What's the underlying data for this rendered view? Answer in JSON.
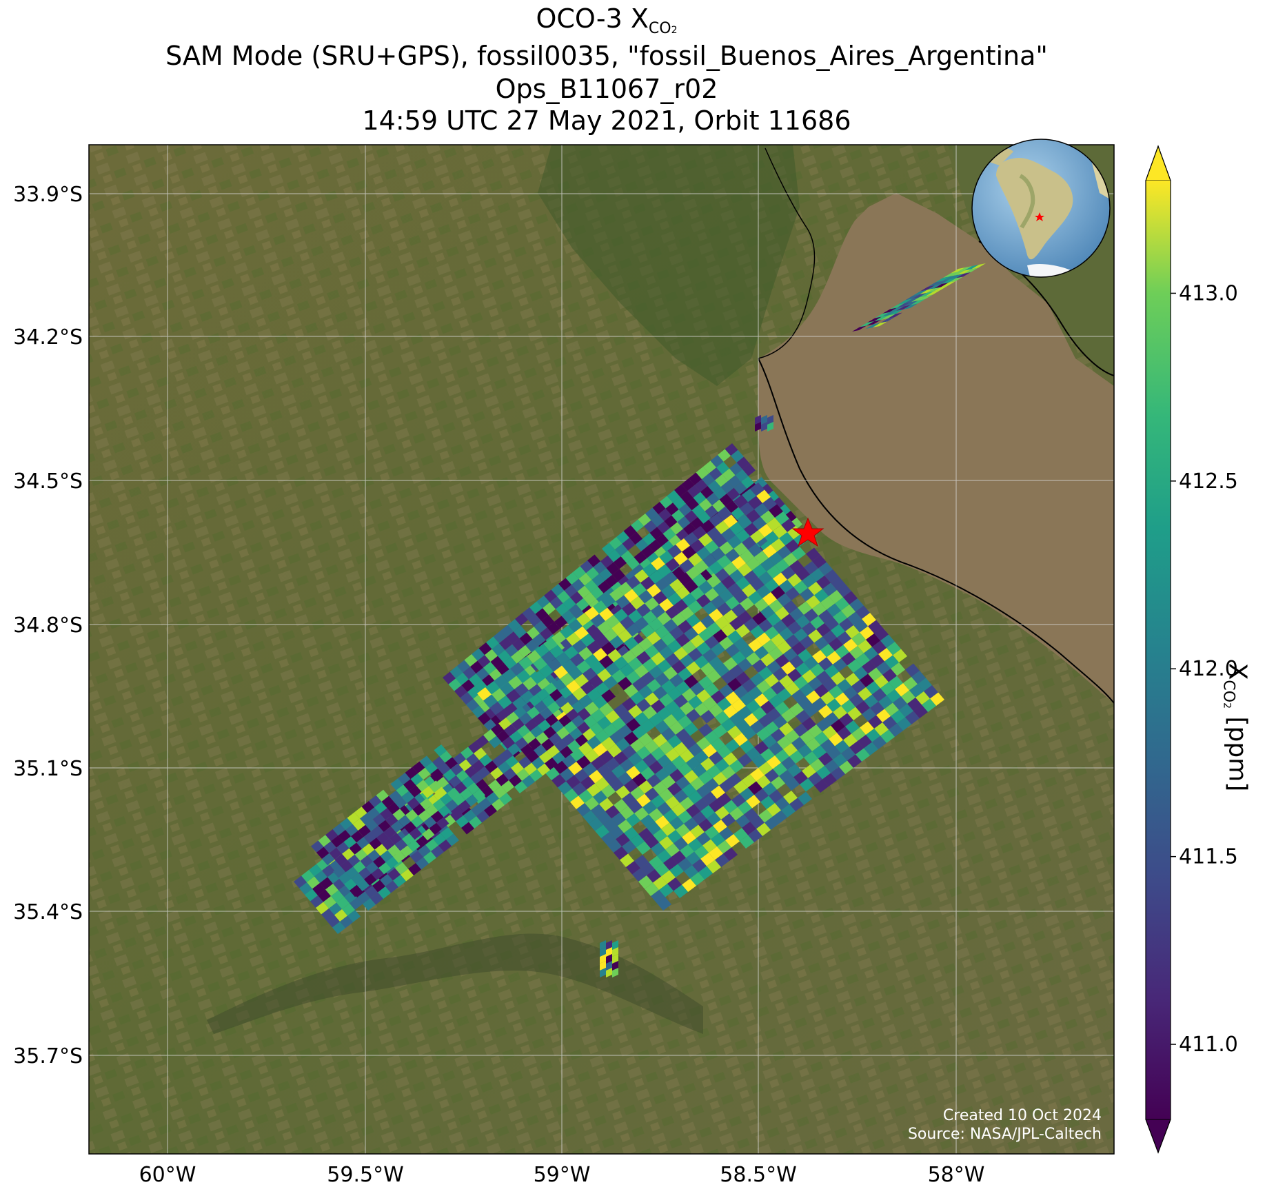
{
  "title": {
    "line1_prefix": "OCO-3 X",
    "line1_sub": "CO",
    "line1_subsub": "2",
    "line2": "SAM Mode (SRU+GPS), fossil0035, \"fossil_Buenos_Aires_Argentina\"",
    "line3": "Ops_B11067_r02",
    "line4": "14:59 UTC 27 May 2021, Orbit 11686"
  },
  "axes": {
    "lat_ticks": [
      "33.9°S",
      "34.2°S",
      "34.5°S",
      "34.8°S",
      "35.1°S",
      "35.4°S",
      "35.7°S"
    ],
    "lon_ticks": [
      "60°W",
      "59.5°W",
      "59°W",
      "58.5°W",
      "58°W"
    ]
  },
  "colorbar": {
    "label_prefix": "X",
    "label_sub": "CO",
    "label_subsub": "2",
    "label_suffix": " [ppm]",
    "ticks": [
      "413.0",
      "412.5",
      "412.0",
      "411.5",
      "411.0"
    ],
    "range": [
      410.8,
      413.3
    ],
    "colormap": "viridis",
    "extend": "both"
  },
  "map": {
    "target_marker": "red-star",
    "target_color": "#ff0000",
    "inset": "globe-south-america",
    "basemap": "satellite-imagery"
  },
  "credits": {
    "created": "Created 10 Oct 2024",
    "source": "Source: NASA/JPL-Caltech"
  },
  "chart_data": {
    "type": "heatmap",
    "title": "OCO-3 XCO2",
    "x_axis": "longitude",
    "y_axis": "latitude",
    "xlim": [
      -60.2,
      -57.8
    ],
    "ylim": [
      -35.85,
      -33.8
    ],
    "zlabel": "XCO2 [ppm]",
    "zlim": [
      410.8,
      413.3
    ],
    "target": {
      "lon": -58.37,
      "lat": -34.61
    },
    "swaths": [
      {
        "name": "main",
        "lon": [
          -59.3,
          -58.05
        ],
        "lat": [
          -35.5,
          -34.5
        ]
      },
      {
        "name": "north",
        "lon": [
          -58.25,
          -57.98
        ],
        "lat": [
          -34.15,
          -34.05
        ]
      }
    ]
  }
}
